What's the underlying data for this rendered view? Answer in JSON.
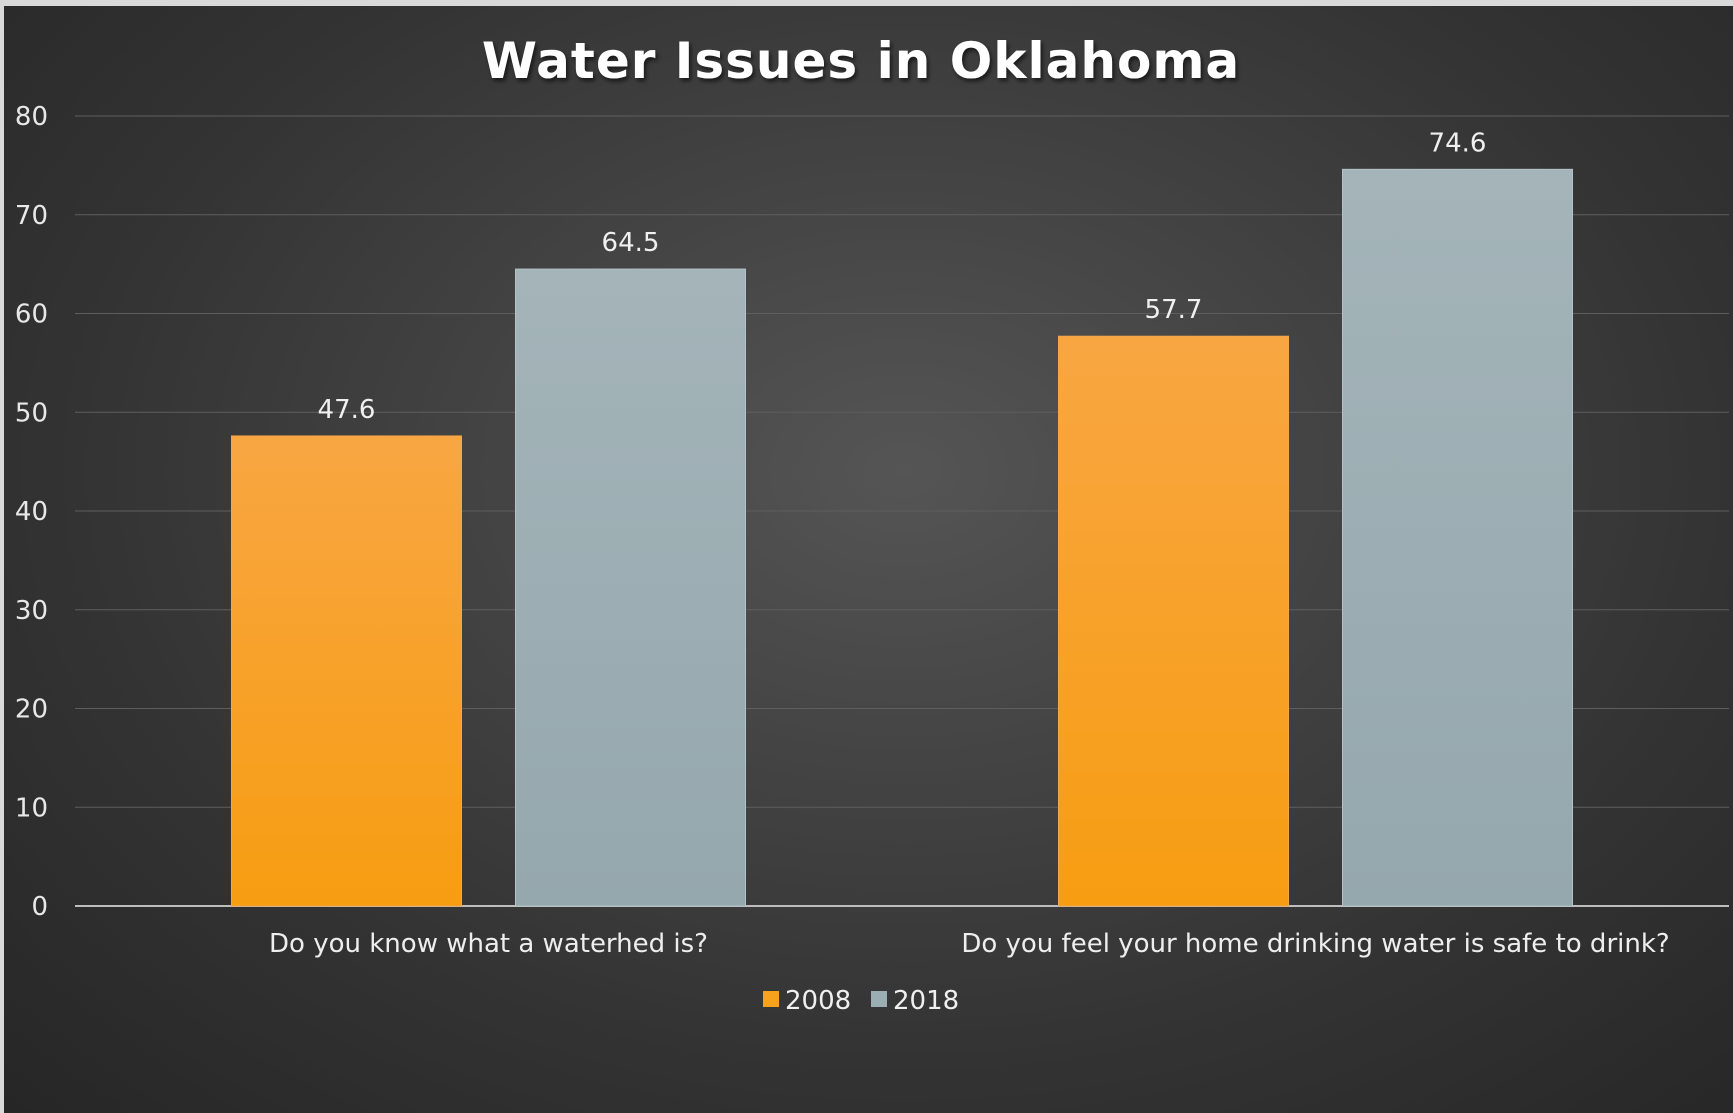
{
  "chart_data": {
    "type": "bar",
    "title": "Water Issues in Oklahoma",
    "categories": [
      "Do you know what a waterhed is?",
      "Do you feel your home drinking water is safe to drink?"
    ],
    "series": [
      {
        "name": "2008",
        "values": [
          47.6,
          57.7
        ],
        "color": "#f7a21d"
      },
      {
        "name": "2018",
        "values": [
          64.5,
          74.6
        ],
        "color": "#9aaeb4"
      }
    ],
    "ylim": [
      0,
      80
    ],
    "yticks": [
      0,
      10,
      20,
      30,
      40,
      50,
      60,
      70,
      80
    ],
    "grid": true,
    "legend": "bottom-center",
    "data_labels": true
  }
}
